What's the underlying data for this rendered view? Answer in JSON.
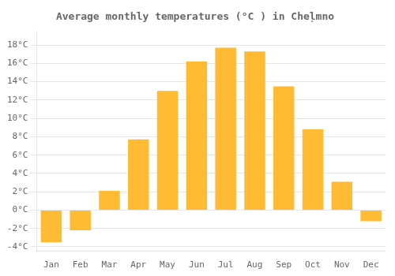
{
  "chart_data": {
    "type": "bar",
    "title": "Average monthly temperatures (°C ) in Cheļmno",
    "categories": [
      "Jan",
      "Feb",
      "Mar",
      "Apr",
      "May",
      "Jun",
      "Jul",
      "Aug",
      "Sep",
      "Oct",
      "Nov",
      "Dec"
    ],
    "values": [
      -3.5,
      -2.2,
      2.1,
      7.7,
      13.0,
      16.2,
      17.7,
      17.3,
      13.5,
      8.8,
      3.1,
      -1.2
    ],
    "color": "#FFBB33",
    "ylim": [
      -4.5,
      19.5
    ],
    "yticks": [
      {
        "value": -4,
        "label": "-4°C"
      },
      {
        "value": -2,
        "label": "-2°C"
      },
      {
        "value": 0,
        "label": "0°C"
      },
      {
        "value": 2,
        "label": "2°C"
      },
      {
        "value": 4,
        "label": "4°C"
      },
      {
        "value": 6,
        "label": "6°C"
      },
      {
        "value": 8,
        "label": "8°C"
      },
      {
        "value": 10,
        "label": "10°C"
      },
      {
        "value": 12,
        "label": "12°C"
      },
      {
        "value": 14,
        "label": "14°C"
      },
      {
        "value": 16,
        "label": "16°C"
      },
      {
        "value": 18,
        "label": "18°C"
      }
    ],
    "grid": true
  }
}
